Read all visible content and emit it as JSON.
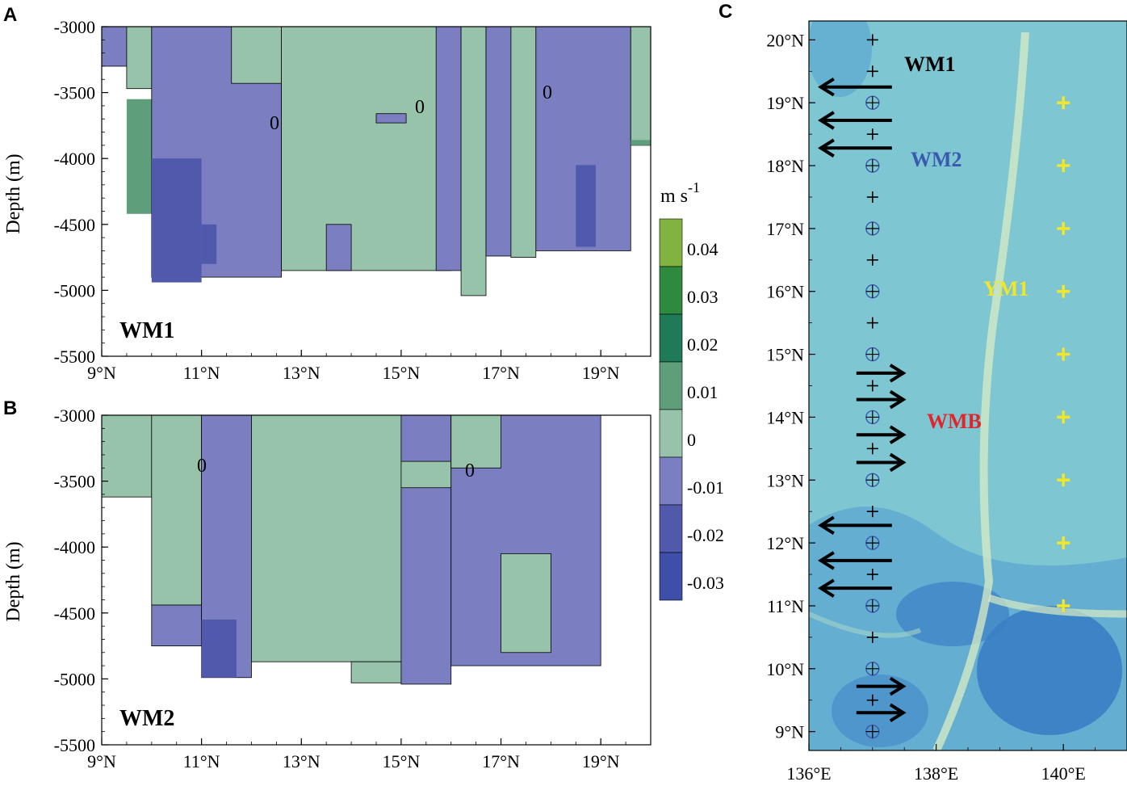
{
  "colors": {
    "neg003": "#3d4fa8",
    "neg002": "#5059ac",
    "neg001": "#7b7fc1",
    "pos000": "#98c3ab",
    "pos001": "#5f9e7b",
    "pos002": "#1f7a58",
    "pos003": "#2d8a3e",
    "pos004": "#80b33f",
    "map_bg": "#7ec6d2",
    "map_deep": "#3a84c6",
    "arrow": "#000000",
    "ym1": "#f1e62a",
    "wmb": "#e0262a",
    "wm2": "#3a5ab0",
    "wm1": "#000000"
  },
  "panel_labels": [
    "A",
    "B",
    "C"
  ],
  "chart_data": [
    {
      "id": "A",
      "type": "heatmap",
      "label": "WM1",
      "ylabel": "Depth (m)",
      "ylim": [
        -5500,
        -3000
      ],
      "xlim": [
        9,
        20
      ],
      "yticks": [
        "-3000",
        "-3500",
        "-4000",
        "-4500",
        "-5000",
        "-5500"
      ],
      "xticks": [
        "9°N",
        "11°N",
        "13°N",
        "15°N",
        "17°N",
        "19°N"
      ],
      "contour_label": "0",
      "regions": [
        {
          "x0": 9.0,
          "x1": 9.5,
          "ytop": -3000,
          "ybot": -3300,
          "c": "neg001"
        },
        {
          "x0": 9.5,
          "x1": 10.0,
          "ytop": -3000,
          "ybot": -3470,
          "c": "pos000"
        },
        {
          "x0": 9.5,
          "x1": 10.0,
          "ytop": -3550,
          "ybot": -4420,
          "c": "pos001"
        },
        {
          "x0": 10.0,
          "x1": 12.6,
          "ytop": -3000,
          "ybot": -4900,
          "c": "neg001"
        },
        {
          "x0": 10.0,
          "x1": 11.0,
          "ytop": -4000,
          "ybot": -4940,
          "c": "neg002"
        },
        {
          "x0": 11.0,
          "x1": 11.3,
          "ytop": -4500,
          "ybot": -4800,
          "c": "neg002"
        },
        {
          "x0": 11.6,
          "x1": 12.6,
          "ytop": -3000,
          "ybot": -3430,
          "c": "pos000"
        },
        {
          "x0": 12.6,
          "x1": 16.0,
          "ytop": -3000,
          "ybot": -4850,
          "c": "pos000"
        },
        {
          "x0": 14.5,
          "x1": 15.1,
          "ytop": -3660,
          "ybot": -3730,
          "c": "neg001"
        },
        {
          "x0": 13.5,
          "x1": 14.0,
          "ytop": -4500,
          "ybot": -4850,
          "c": "neg001"
        },
        {
          "x0": 15.7,
          "x1": 16.2,
          "ytop": -3000,
          "ybot": -4850,
          "c": "neg001"
        },
        {
          "x0": 16.2,
          "x1": 16.7,
          "ytop": -3000,
          "ybot": -5040,
          "c": "pos000"
        },
        {
          "x0": 16.7,
          "x1": 17.2,
          "ytop": -3000,
          "ybot": -4740,
          "c": "neg001"
        },
        {
          "x0": 17.2,
          "x1": 17.7,
          "ytop": -3000,
          "ybot": -4750,
          "c": "pos000"
        },
        {
          "x0": 17.7,
          "x1": 19.6,
          "ytop": -3000,
          "ybot": -4700,
          "c": "neg001"
        },
        {
          "x0": 18.5,
          "x1": 18.9,
          "ytop": -4050,
          "ybot": -4670,
          "c": "neg002"
        },
        {
          "x0": 19.6,
          "x1": 20.0,
          "ytop": -3000,
          "ybot": -3900,
          "c": "pos000"
        },
        {
          "x0": 19.6,
          "x1": 20.0,
          "ytop": -3860,
          "ybot": -3900,
          "c": "pos001"
        }
      ]
    },
    {
      "id": "B",
      "type": "heatmap",
      "label": "WM2",
      "ylabel": "Depth (m)",
      "ylim": [
        -5500,
        -3000
      ],
      "xlim": [
        9,
        20
      ],
      "yticks": [
        "-3000",
        "-3500",
        "-4000",
        "-4500",
        "-5000",
        "-5500"
      ],
      "xticks": [
        "9°N",
        "11°N",
        "13°N",
        "15°N",
        "17°N",
        "19°N"
      ],
      "contour_label": "0",
      "regions": [
        {
          "x0": 9.0,
          "x1": 10.0,
          "ytop": -3000,
          "ybot": -3620,
          "c": "pos000"
        },
        {
          "x0": 10.0,
          "x1": 11.0,
          "ytop": -3000,
          "ybot": -4440,
          "c": "pos000"
        },
        {
          "x0": 10.0,
          "x1": 11.0,
          "ytop": -4440,
          "ybot": -4750,
          "c": "neg001"
        },
        {
          "x0": 11.0,
          "x1": 12.0,
          "ytop": -3000,
          "ybot": -4990,
          "c": "neg001"
        },
        {
          "x0": 11.0,
          "x1": 11.7,
          "ytop": -4550,
          "ybot": -4990,
          "c": "neg002"
        },
        {
          "x0": 12.0,
          "x1": 15.0,
          "ytop": -3000,
          "ybot": -4870,
          "c": "pos000"
        },
        {
          "x0": 14.0,
          "x1": 15.0,
          "ytop": -4870,
          "ybot": -5030,
          "c": "pos000"
        },
        {
          "x0": 15.0,
          "x1": 16.0,
          "ytop": -3000,
          "ybot": -5040,
          "c": "neg001"
        },
        {
          "x0": 15.0,
          "x1": 16.0,
          "ytop": -3350,
          "ybot": -3550,
          "c": "pos000"
        },
        {
          "x0": 16.0,
          "x1": 19.0,
          "ytop": -3000,
          "ybot": -4900,
          "c": "neg001"
        },
        {
          "x0": 16.0,
          "x1": 17.0,
          "ytop": -3000,
          "ybot": -3400,
          "c": "pos000"
        },
        {
          "x0": 17.0,
          "x1": 18.0,
          "ytop": -4050,
          "ybot": -4800,
          "c": "pos000"
        }
      ]
    }
  ],
  "colorbar": {
    "unit": "m s",
    "unit_sup": "-1",
    "levels": [
      "0.04",
      "0.03",
      "0.02",
      "0.01",
      "0",
      "-0.01",
      "-0.02",
      "-0.03"
    ],
    "swatches": [
      "pos004",
      "pos003",
      "pos002",
      "pos001",
      "pos000",
      "neg001",
      "neg002",
      "neg003"
    ]
  },
  "map": {
    "xlim": [
      136,
      141
    ],
    "ylim": [
      8.7,
      20.3
    ],
    "lat_ticks": [
      "20°N",
      "19°N",
      "18°N",
      "17°N",
      "16°N",
      "15°N",
      "14°N",
      "13°N",
      "12°N",
      "11°N",
      "10°N",
      "9°N"
    ],
    "lon_ticks": [
      "136°E",
      "138°E",
      "140°E"
    ],
    "labels": {
      "wm1": "WM1",
      "wm2": "WM2",
      "ym1": "YM1",
      "wmb": "WMB"
    },
    "wm_station_lon": 137.0,
    "plus_lats": [
      20.0,
      19.5,
      18.5,
      17.5,
      16.5,
      15.5,
      14.5,
      13.5,
      12.5,
      11.5,
      10.5,
      9.5
    ],
    "circled_lats": [
      19,
      18,
      17,
      16,
      15,
      14,
      13,
      12,
      11,
      10,
      9
    ],
    "ym1_lon": 140.0,
    "ym1_lats": [
      19,
      18,
      17,
      16,
      15,
      14,
      13,
      12,
      11
    ],
    "arrows": [
      {
        "lat": 19.25,
        "dir": "W"
      },
      {
        "lat": 18.72,
        "dir": "W"
      },
      {
        "lat": 18.28,
        "dir": "W"
      },
      {
        "lat": 14.7,
        "dir": "E"
      },
      {
        "lat": 14.28,
        "dir": "E"
      },
      {
        "lat": 13.72,
        "dir": "E"
      },
      {
        "lat": 13.28,
        "dir": "E"
      },
      {
        "lat": 12.28,
        "dir": "W"
      },
      {
        "lat": 11.72,
        "dir": "W"
      },
      {
        "lat": 11.28,
        "dir": "W"
      },
      {
        "lat": 9.72,
        "dir": "E"
      },
      {
        "lat": 9.3,
        "dir": "E"
      }
    ]
  }
}
